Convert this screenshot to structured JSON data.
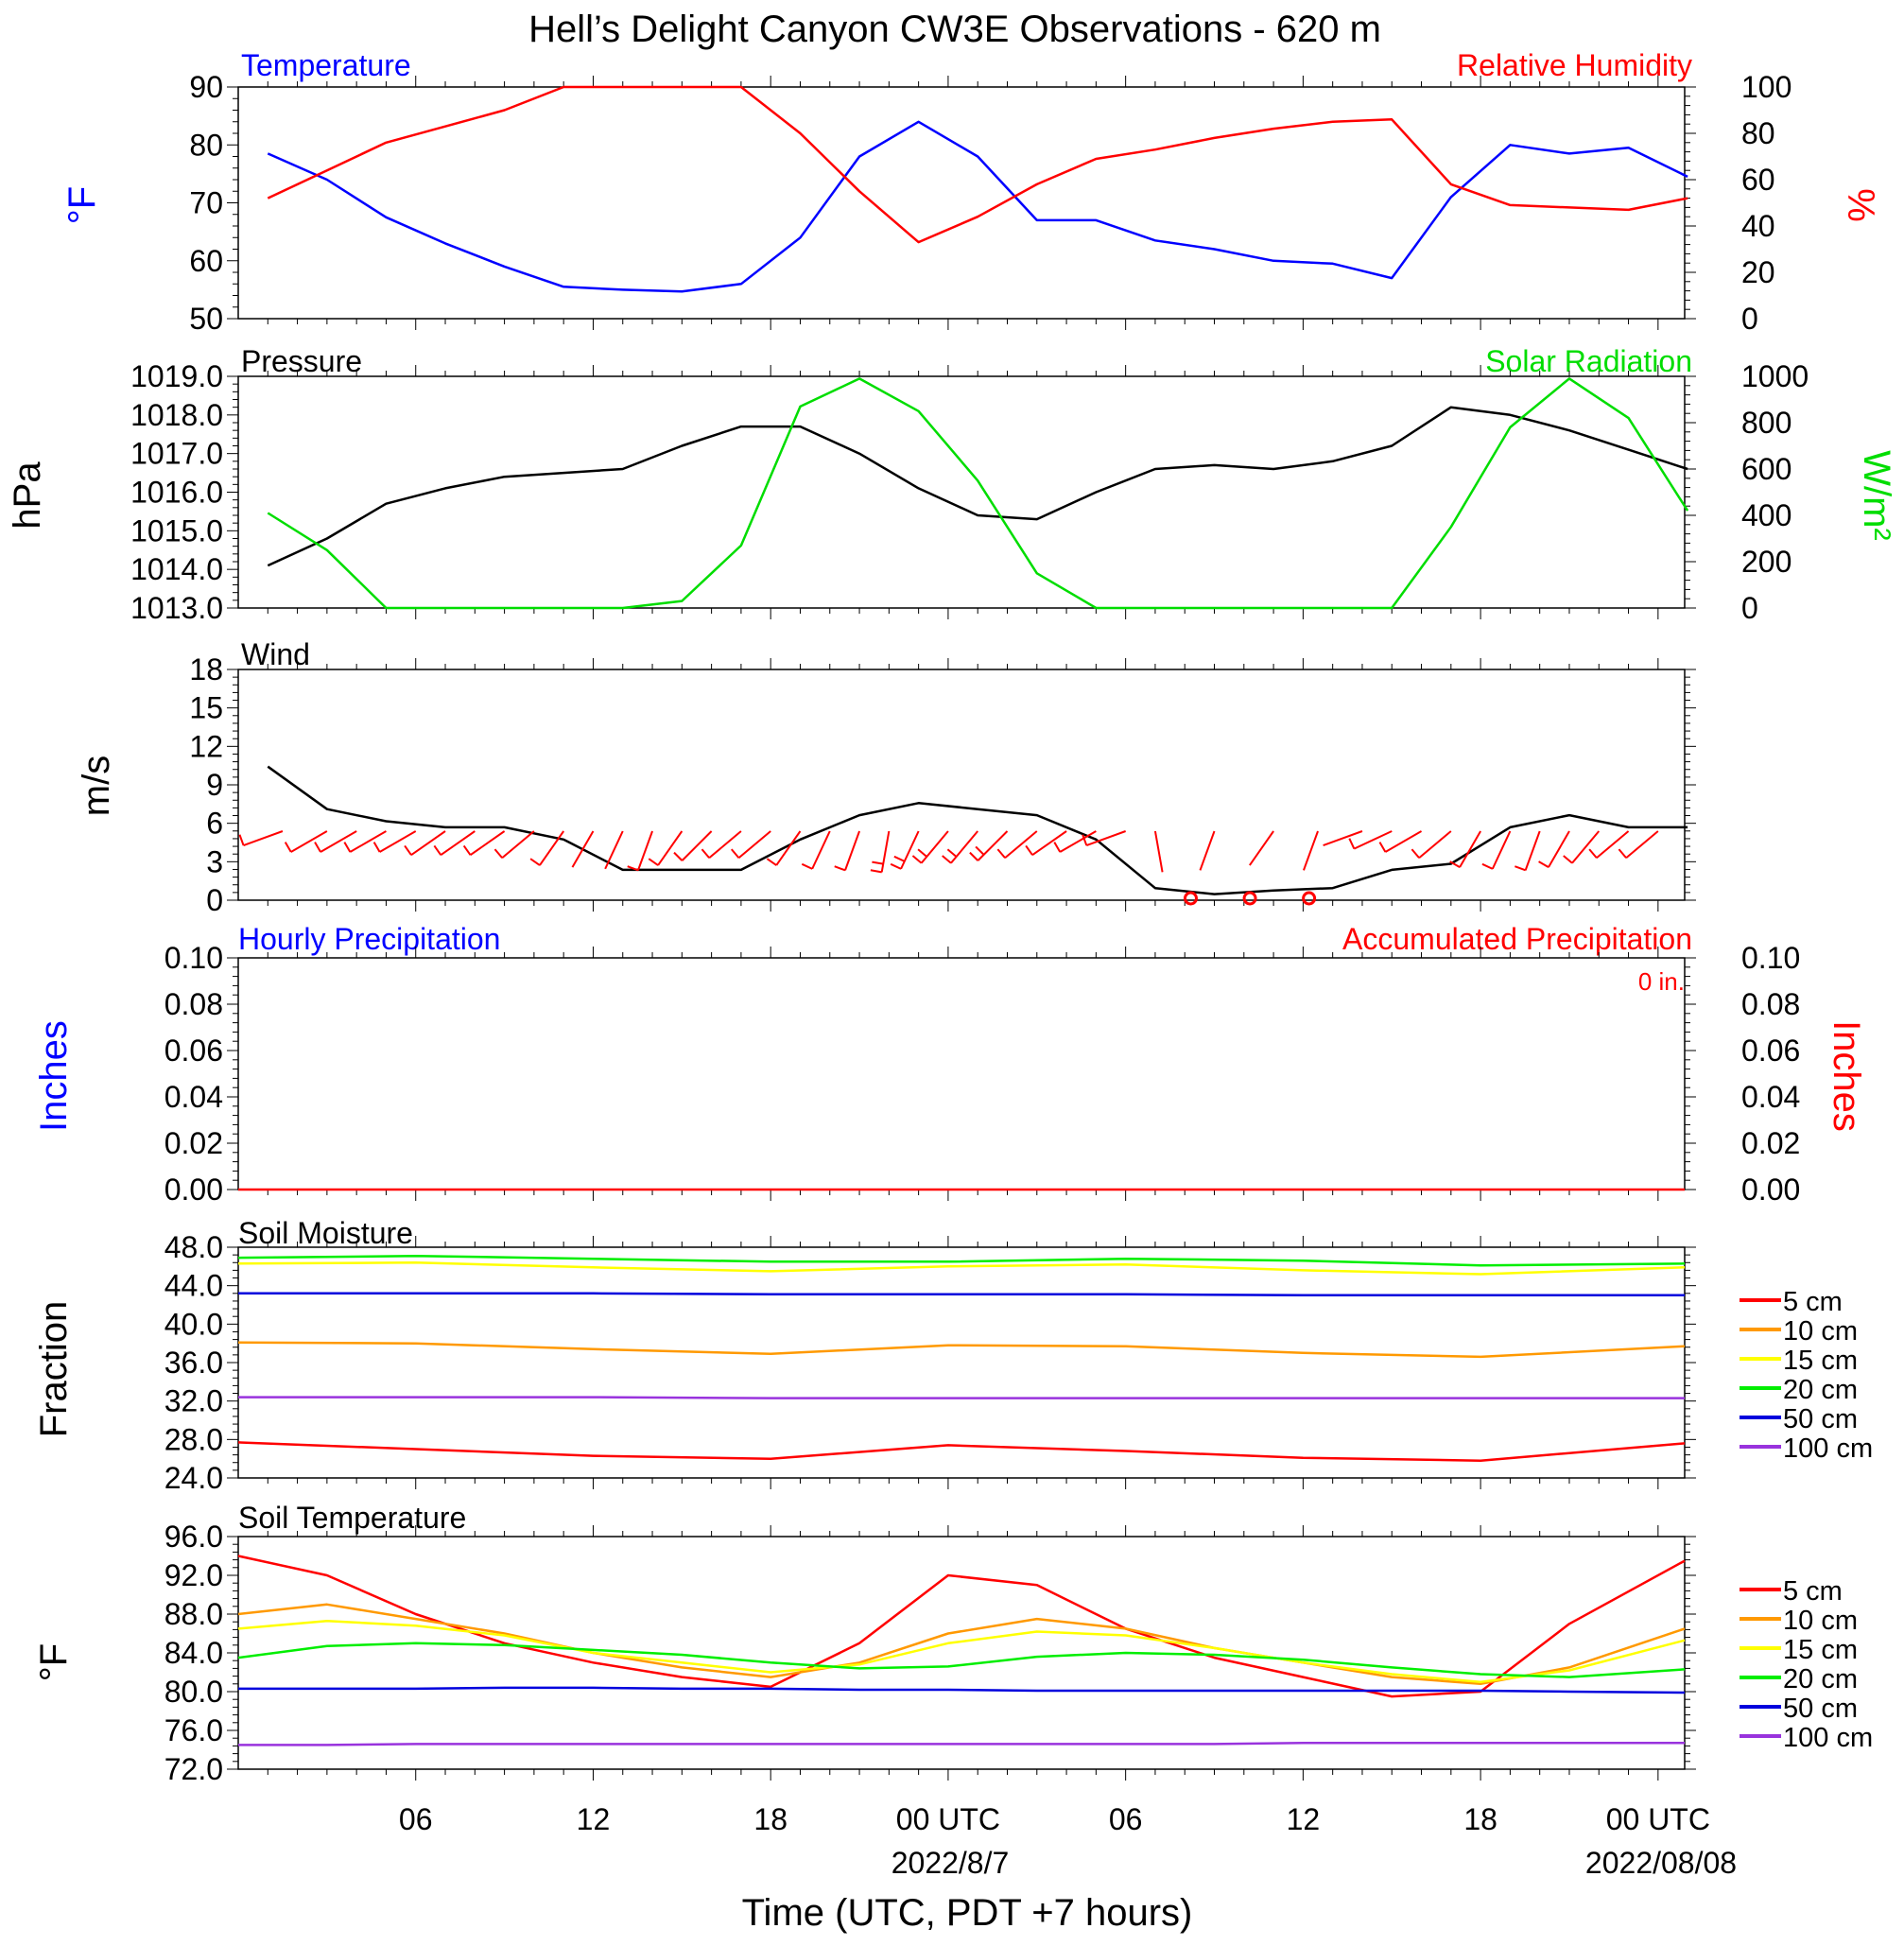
{
  "title": "Hell’s Delight Canyon CW3E Observations - 620 m",
  "xlabel": "Time (UTC, PDT +7 hours)",
  "date_labels": [
    "2022/8/7",
    "2022/08/08"
  ],
  "colors": {
    "temperature": "#0000ff",
    "humidity": "#ff0000",
    "pressure": "#000000",
    "solar": "#00dd00",
    "wind_barb": "#ff0000",
    "depth_5": "#ff0000",
    "depth_10": "#ff9900",
    "depth_15": "#ffff00",
    "depth_20": "#00ee00",
    "depth_50": "#0000dd",
    "depth_100": "#9933dd"
  },
  "chart_data": [
    {
      "type": "line",
      "panel": "temperature-humidity",
      "left_title": "Temperature",
      "right_title": "Relative Humidity",
      "ylabel_left": "°F",
      "ylabel_right": "%",
      "ylim_left": [
        50,
        90
      ],
      "yticks_left": [
        "90",
        "80",
        "70",
        "60",
        "50"
      ],
      "ylim_right": [
        0,
        100
      ],
      "yticks_right": [
        "100",
        "80",
        "60",
        "40",
        "20",
        "0"
      ],
      "x_hours": [
        1,
        3,
        5,
        7,
        9,
        11,
        13,
        15,
        17,
        19,
        21,
        23,
        25,
        27,
        29,
        31,
        33,
        35,
        37,
        39,
        41,
        43,
        45,
        47,
        49
      ],
      "series": [
        {
          "name": "Temperature",
          "axis": "left",
          "values": [
            78.5,
            74,
            67.5,
            63,
            59,
            55.5,
            55,
            54.7,
            56,
            64,
            78,
            84,
            78,
            67,
            67,
            63.5,
            62,
            60,
            59.5,
            57,
            71,
            80,
            78.5,
            79.5,
            74.5
          ]
        },
        {
          "name": "Relative Humidity",
          "axis": "right",
          "values": [
            52,
            64,
            76,
            83,
            90,
            100,
            100,
            100,
            100,
            80,
            55,
            33,
            44,
            58,
            69,
            73,
            78,
            82,
            85,
            86,
            58,
            49,
            48,
            47,
            52
          ]
        }
      ]
    },
    {
      "type": "line",
      "panel": "pressure-solar",
      "left_title": "Pressure",
      "right_title": "Solar Radiation",
      "ylabel_left": "hPa",
      "ylabel_right": "W/m²",
      "ylim_left": [
        1013,
        1019
      ],
      "yticks_left": [
        "1019.0",
        "1018.0",
        "1017.0",
        "1016.0",
        "1015.0",
        "1014.0",
        "1013.0"
      ],
      "ylim_right": [
        0,
        1000
      ],
      "yticks_right": [
        "1000",
        "800",
        "600",
        "400",
        "200",
        "0"
      ],
      "x_hours": [
        1,
        3,
        5,
        7,
        9,
        11,
        13,
        15,
        17,
        19,
        21,
        23,
        25,
        27,
        29,
        31,
        33,
        35,
        37,
        39,
        41,
        43,
        45,
        47,
        49
      ],
      "series": [
        {
          "name": "Pressure",
          "axis": "left",
          "values": [
            1014.1,
            1014.8,
            1015.7,
            1016.1,
            1016.4,
            1016.5,
            1016.6,
            1017.2,
            1017.7,
            1017.7,
            1017.0,
            1016.1,
            1015.4,
            1015.3,
            1016.0,
            1016.6,
            1016.7,
            1016.6,
            1016.8,
            1017.2,
            1018.2,
            1018.0,
            1017.6,
            1017.1,
            1016.6
          ]
        },
        {
          "name": "Solar Radiation",
          "axis": "right",
          "values": [
            410,
            250,
            0,
            0,
            0,
            0,
            0,
            30,
            270,
            870,
            990,
            850,
            550,
            150,
            0,
            0,
            0,
            0,
            0,
            0,
            350,
            780,
            990,
            820,
            420
          ]
        }
      ]
    },
    {
      "type": "line",
      "panel": "wind",
      "left_title": "Wind",
      "ylabel_left": "m/s",
      "ylim_left": [
        0,
        19
      ],
      "yticks_left": [
        "18",
        "15",
        "12",
        "9",
        "6",
        "3",
        "0"
      ],
      "x_hours": [
        1,
        3,
        5,
        7,
        9,
        11,
        13,
        15,
        17,
        19,
        21,
        23,
        25,
        27,
        29,
        31,
        33,
        35,
        37,
        39,
        41,
        43,
        45,
        47,
        49
      ],
      "series": [
        {
          "name": "Wind",
          "axis": "left",
          "values": [
            11,
            7.5,
            6.5,
            6,
            6,
            5,
            2.5,
            2.5,
            2.5,
            5,
            7,
            8,
            7.5,
            7,
            5,
            1,
            0.5,
            0.8,
            1,
            2.5,
            3,
            6,
            7,
            6,
            6
          ]
        }
      ],
      "calm_markers_hours": [
        32.2,
        34.2,
        36.2
      ]
    },
    {
      "type": "line",
      "panel": "precipitation",
      "left_title": "Hourly Precipitation",
      "right_title": "Accumulated Precipitation",
      "annotation": "0 in.",
      "ylabel_left": "Inches",
      "ylabel_right": "Inches",
      "ylim_left": [
        0,
        0.1
      ],
      "yticks_left": [
        "0.10",
        "0.08",
        "0.06",
        "0.04",
        "0.02",
        "0.00"
      ],
      "ylim_right": [
        0,
        0.1
      ],
      "yticks_right": [
        "0.10",
        "0.08",
        "0.06",
        "0.04",
        "0.02",
        "0.00"
      ],
      "x_hours": [
        0,
        48.9
      ],
      "series": [
        {
          "name": "Accumulated Precipitation",
          "axis": "left",
          "values": [
            0,
            0
          ]
        }
      ]
    },
    {
      "type": "line",
      "panel": "soil-moisture",
      "left_title": "Soil Moisture",
      "ylabel_left": "Fraction",
      "ylim_left": [
        24,
        48
      ],
      "yticks_left": [
        "48.0",
        "44.0",
        "40.0",
        "36.0",
        "32.0",
        "28.0",
        "24.0"
      ],
      "x_hours": [
        0,
        6,
        12,
        18,
        24,
        30,
        36,
        42,
        48.9
      ],
      "legend": [
        "5 cm",
        "10 cm",
        "15 cm",
        "20 cm",
        "50 cm",
        "100 cm"
      ],
      "series": [
        {
          "name": "5 cm",
          "axis": "left",
          "values": [
            27.7,
            27.0,
            26.3,
            26.0,
            27.4,
            26.8,
            26.1,
            25.8,
            27.6
          ]
        },
        {
          "name": "10 cm",
          "axis": "left",
          "values": [
            38.1,
            38.0,
            37.4,
            36.9,
            37.8,
            37.7,
            37.0,
            36.6,
            37.7
          ]
        },
        {
          "name": "15 cm",
          "axis": "left",
          "values": [
            46.3,
            46.4,
            45.9,
            45.5,
            46.0,
            46.2,
            45.6,
            45.2,
            45.9
          ]
        },
        {
          "name": "20 cm",
          "axis": "left",
          "values": [
            46.9,
            47.1,
            46.8,
            46.5,
            46.5,
            46.8,
            46.6,
            46.1,
            46.3
          ]
        },
        {
          "name": "50 cm",
          "axis": "left",
          "values": [
            43.2,
            43.2,
            43.2,
            43.1,
            43.1,
            43.1,
            43.0,
            43.0,
            43.0
          ]
        },
        {
          "name": "100 cm",
          "axis": "left",
          "values": [
            32.4,
            32.4,
            32.4,
            32.3,
            32.3,
            32.3,
            32.3,
            32.3,
            32.3
          ]
        }
      ]
    },
    {
      "type": "line",
      "panel": "soil-temperature",
      "left_title": "Soil Temperature",
      "ylabel_left": "°F",
      "ylim_left": [
        72,
        96
      ],
      "yticks_left": [
        "96.0",
        "92.0",
        "88.0",
        "84.0",
        "80.0",
        "76.0",
        "72.0"
      ],
      "x_hours": [
        0,
        3,
        6,
        9,
        12,
        15,
        18,
        21,
        24,
        27,
        30,
        33,
        36,
        39,
        42,
        45,
        48.9
      ],
      "legend": [
        "5 cm",
        "10 cm",
        "15 cm",
        "20 cm",
        "50 cm",
        "100 cm"
      ],
      "series": [
        {
          "name": "5 cm",
          "axis": "left",
          "values": [
            94.0,
            92.0,
            88.0,
            85.0,
            83.0,
            81.5,
            80.5,
            85.0,
            92.0,
            91.0,
            86.5,
            83.5,
            81.5,
            79.5,
            80.0,
            87.0,
            93.5
          ]
        },
        {
          "name": "10 cm",
          "axis": "left",
          "values": [
            88.0,
            89.0,
            87.5,
            86.0,
            84.0,
            82.5,
            81.5,
            83.0,
            86.0,
            87.5,
            86.5,
            84.5,
            83.0,
            81.5,
            80.8,
            82.5,
            86.5
          ]
        },
        {
          "name": "15 cm",
          "axis": "left",
          "values": [
            86.5,
            87.3,
            86.8,
            85.8,
            84.0,
            83.0,
            82.0,
            82.8,
            85.0,
            86.2,
            85.8,
            84.5,
            83.0,
            81.8,
            81.0,
            82.2,
            85.3
          ]
        },
        {
          "name": "20 cm",
          "axis": "left",
          "values": [
            83.5,
            84.7,
            85.0,
            84.8,
            84.3,
            83.8,
            83.0,
            82.4,
            82.6,
            83.6,
            84.0,
            83.8,
            83.3,
            82.5,
            81.8,
            81.5,
            82.3
          ]
        },
        {
          "name": "50 cm",
          "axis": "left",
          "values": [
            80.3,
            80.3,
            80.3,
            80.4,
            80.4,
            80.3,
            80.3,
            80.2,
            80.2,
            80.1,
            80.1,
            80.1,
            80.1,
            80.1,
            80.1,
            80.0,
            79.9
          ]
        },
        {
          "name": "100 cm",
          "axis": "left",
          "values": [
            74.5,
            74.5,
            74.6,
            74.6,
            74.6,
            74.6,
            74.6,
            74.6,
            74.6,
            74.6,
            74.6,
            74.6,
            74.7,
            74.7,
            74.7,
            74.7,
            74.7
          ]
        }
      ]
    }
  ],
  "wind_barbs": [
    {
      "hour": 1.5,
      "speed": 6,
      "dir": 250
    },
    {
      "hour": 3.0,
      "speed": 6,
      "dir": 240
    },
    {
      "hour": 4.0,
      "speed": 6,
      "dir": 240
    },
    {
      "hour": 5.0,
      "speed": 6,
      "dir": 240
    },
    {
      "hour": 6.0,
      "speed": 6,
      "dir": 240
    },
    {
      "hour": 7.0,
      "speed": 6,
      "dir": 235
    },
    {
      "hour": 8.0,
      "speed": 5,
      "dir": 235
    },
    {
      "hour": 9.0,
      "speed": 5,
      "dir": 235
    },
    {
      "hour": 10.0,
      "speed": 5,
      "dir": 230
    },
    {
      "hour": 11.0,
      "speed": 3,
      "dir": 215
    },
    {
      "hour": 12.0,
      "speed": 2,
      "dir": 210
    },
    {
      "hour": 13.0,
      "speed": 2,
      "dir": 205
    },
    {
      "hour": 14.0,
      "speed": 3,
      "dir": 200
    },
    {
      "hour": 15.0,
      "speed": 3,
      "dir": 215
    },
    {
      "hour": 16.0,
      "speed": 3,
      "dir": 225
    },
    {
      "hour": 17.0,
      "speed": 4,
      "dir": 230
    },
    {
      "hour": 18.0,
      "speed": 5,
      "dir": 230
    },
    {
      "hour": 19.0,
      "speed": 6,
      "dir": 215
    },
    {
      "hour": 20.0,
      "speed": 7,
      "dir": 205
    },
    {
      "hour": 21.0,
      "speed": 7,
      "dir": 200
    },
    {
      "hour": 22.0,
      "speed": 8,
      "dir": 190
    },
    {
      "hour": 23.0,
      "speed": 8,
      "dir": 205
    },
    {
      "hour": 24.0,
      "speed": 8,
      "dir": 220
    },
    {
      "hour": 25.0,
      "speed": 8,
      "dir": 220
    },
    {
      "hour": 26.0,
      "speed": 8,
      "dir": 225
    },
    {
      "hour": 27.0,
      "speed": 7,
      "dir": 230
    },
    {
      "hour": 28.0,
      "speed": 6,
      "dir": 235
    },
    {
      "hour": 29.0,
      "speed": 5,
      "dir": 240
    },
    {
      "hour": 30.0,
      "speed": 5,
      "dir": 250
    },
    {
      "hour": 31.0,
      "speed": 1,
      "dir": 170
    },
    {
      "hour": 33.0,
      "speed": 1,
      "dir": 200
    },
    {
      "hour": 35.0,
      "speed": 1,
      "dir": 215
    },
    {
      "hour": 36.5,
      "speed": 1,
      "dir": 200
    },
    {
      "hour": 38.0,
      "speed": 2,
      "dir": 250
    },
    {
      "hour": 39.0,
      "speed": 3,
      "dir": 245
    },
    {
      "hour": 40.0,
      "speed": 3,
      "dir": 240
    },
    {
      "hour": 41.0,
      "speed": 4,
      "dir": 230
    },
    {
      "hour": 42.0,
      "speed": 5,
      "dir": 210
    },
    {
      "hour": 43.0,
      "speed": 6,
      "dir": 205
    },
    {
      "hour": 44.0,
      "speed": 6,
      "dir": 200
    },
    {
      "hour": 45.0,
      "speed": 6,
      "dir": 210
    },
    {
      "hour": 46.0,
      "speed": 6,
      "dir": 220
    },
    {
      "hour": 47.0,
      "speed": 6,
      "dir": 230
    },
    {
      "hour": 48.0,
      "speed": 6,
      "dir": 230
    }
  ],
  "x_axis": {
    "range_hours": [
      0,
      48.9
    ],
    "tick_hours": [
      6,
      12,
      18,
      24,
      30,
      36,
      42,
      48
    ],
    "tick_labels": [
      "06",
      "12",
      "18",
      "00 UTC",
      "06",
      "12",
      "18",
      "00 UTC"
    ],
    "date_label_hours": [
      24,
      48
    ]
  }
}
